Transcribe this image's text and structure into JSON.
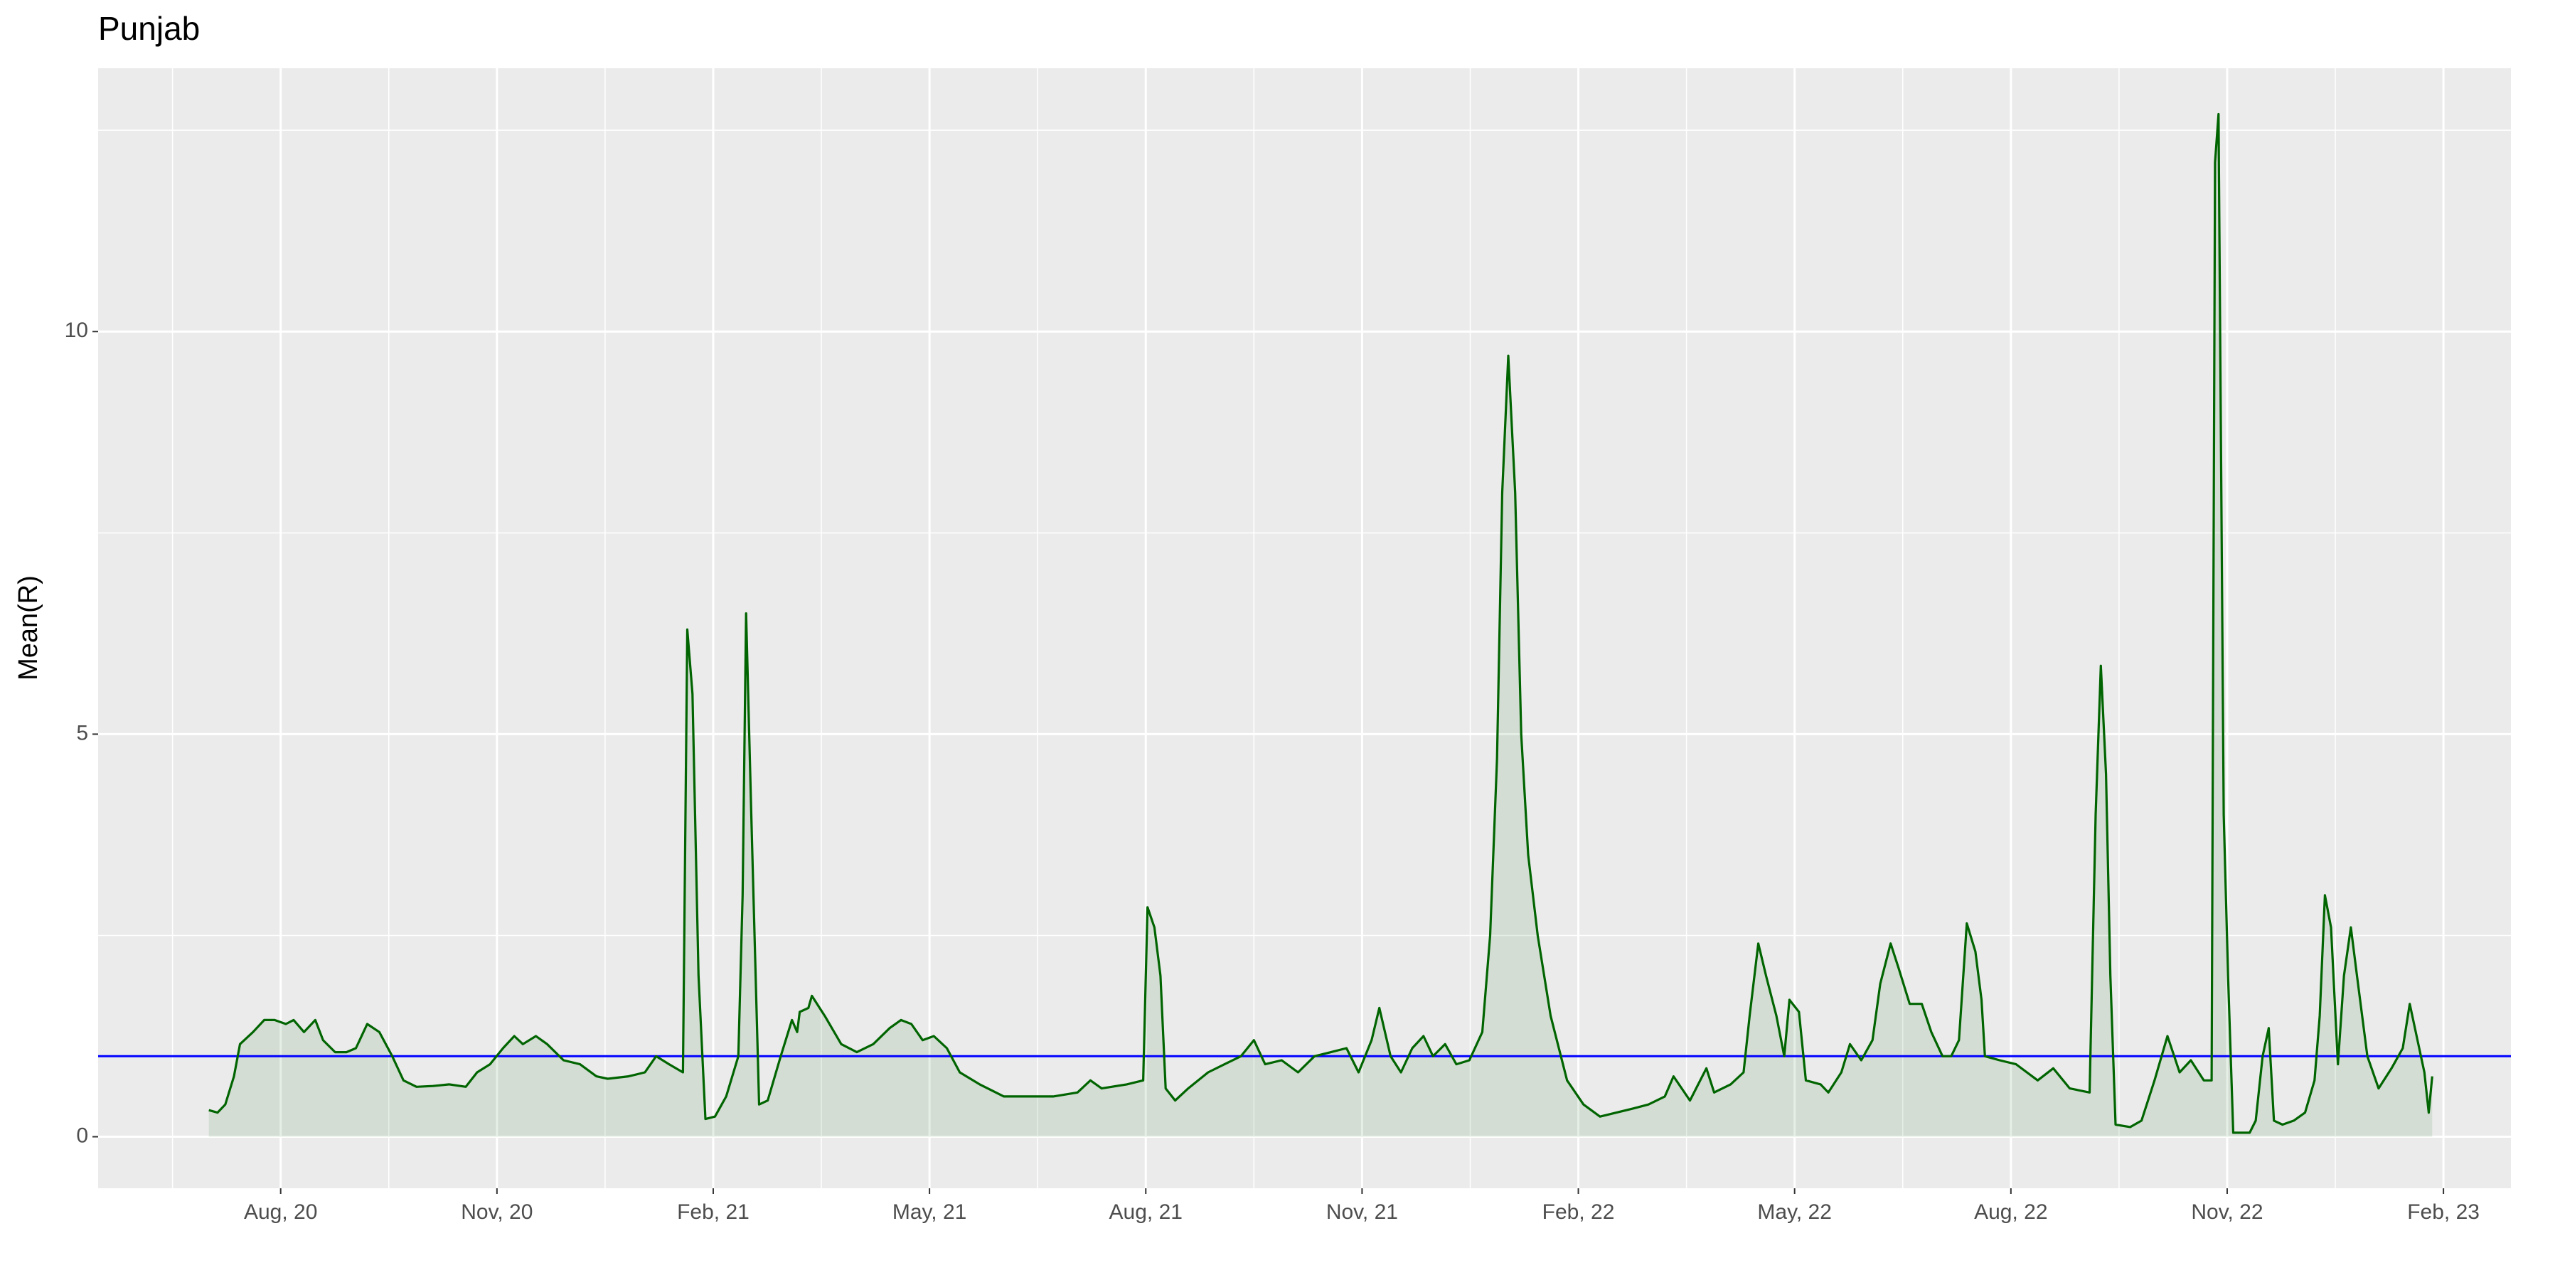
{
  "chart_data": {
    "type": "area-line",
    "title": "Punjab",
    "y_label": "Mean(R)",
    "x": [
      2020.5,
      2020.51,
      2020.519,
      2020.529,
      2020.536,
      2020.551,
      2020.564,
      2020.576,
      2020.589,
      2020.598,
      2020.61,
      2020.623,
      2020.632,
      2020.646,
      2020.659,
      2020.67,
      2020.683,
      2020.697,
      2020.712,
      2020.725,
      2020.74,
      2020.759,
      2020.778,
      2020.797,
      2020.81,
      2020.825,
      2020.84,
      2020.853,
      2020.863,
      2020.878,
      2020.891,
      2020.91,
      2020.929,
      2020.948,
      2020.961,
      2020.985,
      2021.004,
      2021.017,
      2021.032,
      2021.048,
      2021.053,
      2021.059,
      2021.066,
      2021.074,
      2021.085,
      2021.098,
      2021.112,
      2021.117,
      2021.121,
      2021.127,
      2021.136,
      2021.146,
      2021.161,
      2021.174,
      2021.18,
      2021.183,
      2021.193,
      2021.197,
      2021.212,
      2021.231,
      2021.249,
      2021.268,
      2021.287,
      2021.3,
      2021.312,
      2021.325,
      2021.338,
      2021.353,
      2021.368,
      2021.391,
      2021.419,
      2021.448,
      2021.476,
      2021.504,
      2021.519,
      2021.532,
      2021.561,
      2021.58,
      2021.585,
      2021.593,
      2021.6,
      2021.606,
      2021.617,
      2021.632,
      2021.655,
      2021.674,
      2021.693,
      2021.708,
      2021.721,
      2021.74,
      2021.759,
      2021.778,
      2021.797,
      2021.815,
      2021.829,
      2021.844,
      2021.853,
      2021.866,
      2021.878,
      2021.891,
      2021.904,
      2021.915,
      2021.929,
      2021.942,
      2021.957,
      2021.972,
      2021.981,
      2021.989,
      2021.995,
      2022.002,
      2022.01,
      2022.017,
      2022.025,
      2022.036,
      2022.051,
      2022.07,
      2022.089,
      2022.108,
      2022.127,
      2022.146,
      2022.164,
      2022.183,
      2022.193,
      2022.212,
      2022.231,
      2022.24,
      2022.259,
      2022.274,
      2022.281,
      2022.291,
      2022.3,
      2022.312,
      2022.321,
      2022.327,
      2022.338,
      2022.346,
      2022.363,
      2022.372,
      2022.387,
      2022.397,
      2022.41,
      2022.423,
      2022.432,
      2022.444,
      2022.453,
      2022.466,
      2022.48,
      2022.491,
      2022.504,
      2022.514,
      2022.523,
      2022.532,
      2022.542,
      2022.549,
      2022.553,
      2022.57,
      2022.589,
      2022.614,
      2022.632,
      2022.651,
      2022.674,
      2022.681,
      2022.687,
      2022.693,
      2022.698,
      2022.704,
      2022.721,
      2022.734,
      2022.749,
      2022.764,
      2022.778,
      2022.791,
      2022.806,
      2022.815,
      2022.819,
      2022.823,
      2022.829,
      2022.834,
      2022.84,
      2022.859,
      2022.866,
      2022.874,
      2022.881,
      2022.887,
      2022.897,
      2022.91,
      2022.923,
      2022.934,
      2022.94,
      2022.946,
      2022.953,
      2022.961,
      2022.968,
      2022.976,
      2022.983,
      2022.995,
      2023.008,
      2023.023,
      2023.036,
      2023.044,
      2023.053,
      2023.061,
      2023.066,
      2023.07
    ],
    "values": [
      0.33,
      0.3,
      0.4,
      0.75,
      1.15,
      1.3,
      1.45,
      1.45,
      1.4,
      1.45,
      1.3,
      1.45,
      1.2,
      1.05,
      1.05,
      1.1,
      1.4,
      1.3,
      1.0,
      0.7,
      0.62,
      0.63,
      0.65,
      0.62,
      0.8,
      0.9,
      1.1,
      1.25,
      1.15,
      1.25,
      1.15,
      0.95,
      0.9,
      0.75,
      0.72,
      0.75,
      0.8,
      1.0,
      0.9,
      0.8,
      6.3,
      5.5,
      2.0,
      0.22,
      0.25,
      0.5,
      1.0,
      3.0,
      6.5,
      4.0,
      0.4,
      0.45,
      1.0,
      1.45,
      1.3,
      1.55,
      1.6,
      1.75,
      1.5,
      1.15,
      1.05,
      1.15,
      1.35,
      1.45,
      1.4,
      1.2,
      1.25,
      1.1,
      0.8,
      0.65,
      0.5,
      0.5,
      0.5,
      0.55,
      0.7,
      0.6,
      0.65,
      0.7,
      2.85,
      2.6,
      2.0,
      0.6,
      0.45,
      0.6,
      0.8,
      0.9,
      1.0,
      1.2,
      0.9,
      0.95,
      0.8,
      1.0,
      1.05,
      1.1,
      0.8,
      1.2,
      1.6,
      1.0,
      0.8,
      1.1,
      1.25,
      1.0,
      1.15,
      0.9,
      0.95,
      1.3,
      2.5,
      4.7,
      8.0,
      9.7,
      8.0,
      5.0,
      3.5,
      2.5,
      1.5,
      0.7,
      0.4,
      0.25,
      0.3,
      0.35,
      0.4,
      0.5,
      0.75,
      0.45,
      0.85,
      0.55,
      0.65,
      0.8,
      1.5,
      2.4,
      2.0,
      1.5,
      1.0,
      1.7,
      1.55,
      0.7,
      0.65,
      0.55,
      0.8,
      1.15,
      0.95,
      1.2,
      1.9,
      2.4,
      2.1,
      1.65,
      1.65,
      1.3,
      1.0,
      1.0,
      1.2,
      2.65,
      2.3,
      1.7,
      1.0,
      0.95,
      0.9,
      0.7,
      0.85,
      0.6,
      0.55,
      4.0,
      5.85,
      4.5,
      2.0,
      0.15,
      0.12,
      0.2,
      0.7,
      1.25,
      0.8,
      0.95,
      0.7,
      0.7,
      12.1,
      12.7,
      4.0,
      2.0,
      0.05,
      0.05,
      0.2,
      1.0,
      1.35,
      0.2,
      0.15,
      0.2,
      0.3,
      0.7,
      1.5,
      3.0,
      2.6,
      0.9,
      2.0,
      2.6,
      2.0,
      1.0,
      0.6,
      0.85,
      1.1,
      1.65,
      1.2,
      0.8,
      0.3,
      0.75
    ],
    "color": "#006400",
    "hline": 1,
    "hline_color": "#0000ff",
    "xlim": [
      2020.372,
      2023.161
    ],
    "xticks": [
      {
        "value": 2020.583,
        "label": "Aug, 20"
      },
      {
        "value": 2020.833,
        "label": "Nov, 20"
      },
      {
        "value": 2021.083,
        "label": "Feb, 21"
      },
      {
        "value": 2021.333,
        "label": "May, 21"
      },
      {
        "value": 2021.583,
        "label": "Aug, 21"
      },
      {
        "value": 2021.833,
        "label": "Nov, 21"
      },
      {
        "value": 2022.083,
        "label": "Feb, 22"
      },
      {
        "value": 2022.333,
        "label": "May, 22"
      },
      {
        "value": 2022.583,
        "label": "Aug, 22"
      },
      {
        "value": 2022.833,
        "label": "Nov, 22"
      },
      {
        "value": 2023.083,
        "label": "Feb, 23"
      }
    ],
    "ylim": [
      -0.64,
      13.27
    ],
    "yticks": [
      0,
      5,
      10
    ],
    "grid": true
  }
}
